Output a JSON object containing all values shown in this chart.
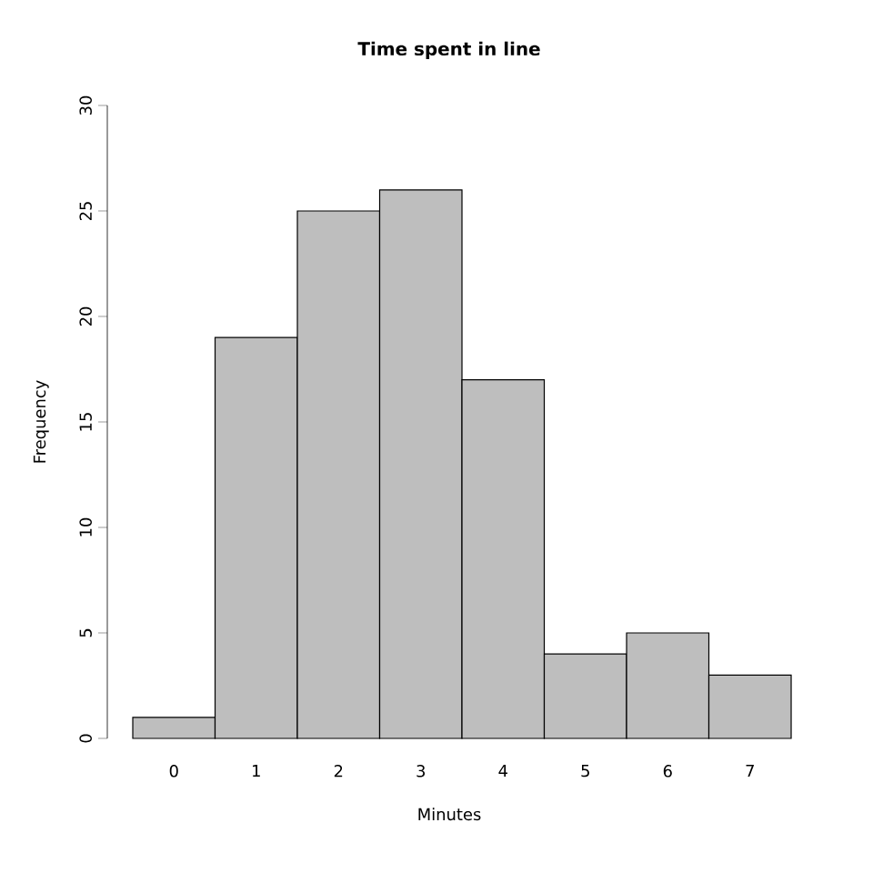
{
  "chart_data": {
    "type": "bar",
    "title": "Time spent in line",
    "xlabel": "Minutes",
    "ylabel": "Frequency",
    "categories": [
      "0",
      "1",
      "2",
      "3",
      "4",
      "5",
      "6",
      "7"
    ],
    "values": [
      1,
      19,
      25,
      26,
      17,
      4,
      5,
      3
    ],
    "color": "#bebebe",
    "ylim": [
      0,
      30
    ],
    "yticks": [
      0,
      5,
      10,
      15,
      20,
      25,
      30
    ]
  }
}
